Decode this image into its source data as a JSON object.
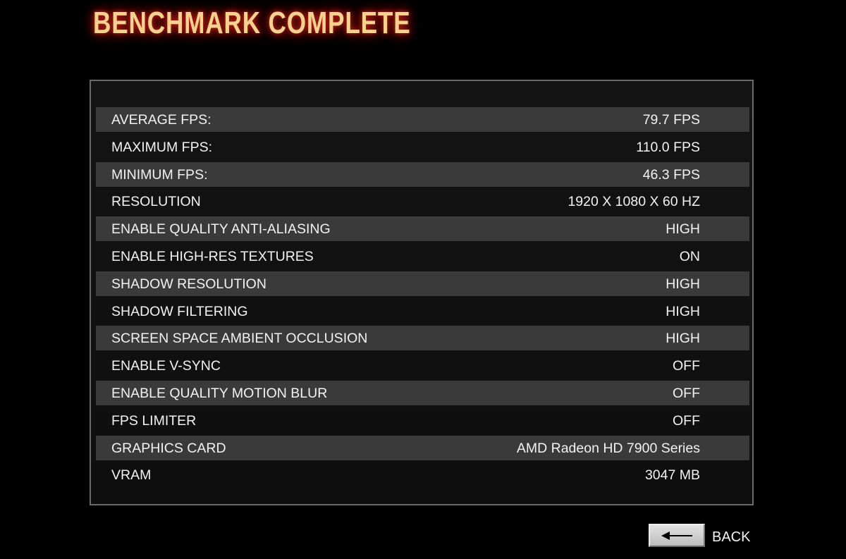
{
  "title": "BENCHMARK COMPLETE",
  "rows": [
    {
      "label": "AVERAGE FPS:",
      "value": "79.7 FPS"
    },
    {
      "label": "MAXIMUM FPS:",
      "value": "110.0 FPS"
    },
    {
      "label": "MINIMUM FPS:",
      "value": "46.3 FPS"
    },
    {
      "label": "RESOLUTION",
      "value": "1920 X 1080 X 60 HZ"
    },
    {
      "label": "ENABLE QUALITY ANTI-ALIASING",
      "value": "HIGH"
    },
    {
      "label": "ENABLE HIGH-RES TEXTURES",
      "value": "ON"
    },
    {
      "label": "SHADOW RESOLUTION",
      "value": "HIGH"
    },
    {
      "label": "SHADOW FILTERING",
      "value": "HIGH"
    },
    {
      "label": "SCREEN SPACE AMBIENT OCCLUSION",
      "value": "HIGH"
    },
    {
      "label": "ENABLE V-SYNC",
      "value": "OFF"
    },
    {
      "label": "ENABLE QUALITY MOTION BLUR",
      "value": "OFF"
    },
    {
      "label": "FPS LIMITER",
      "value": "OFF"
    },
    {
      "label": "GRAPHICS CARD",
      "value": "AMD Radeon HD 7900 Series"
    },
    {
      "label": "VRAM",
      "value": "3047 MB"
    }
  ],
  "back": {
    "label": "BACK",
    "icon": "arrow-left-icon"
  }
}
